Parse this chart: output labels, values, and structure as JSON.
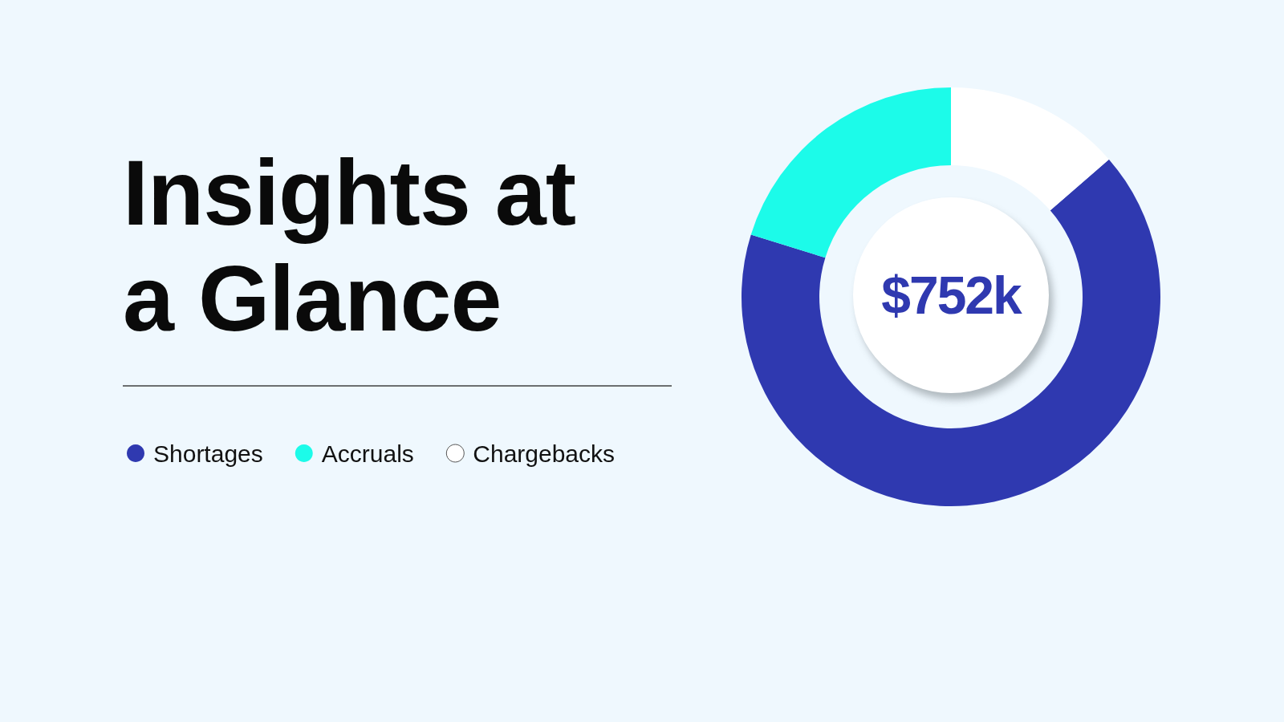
{
  "chart_data": {
    "type": "donut",
    "title": "Insights at a Glance",
    "categories": [
      "Shortages",
      "Accruals",
      "Chargebacks"
    ],
    "values": [
      66.2,
      20.2,
      13.6
    ],
    "colors": [
      "#2f39b0",
      "#1cfbe9",
      "#ffffff"
    ],
    "legend": "left",
    "annotations": [
      "$752k"
    ]
  }
}
